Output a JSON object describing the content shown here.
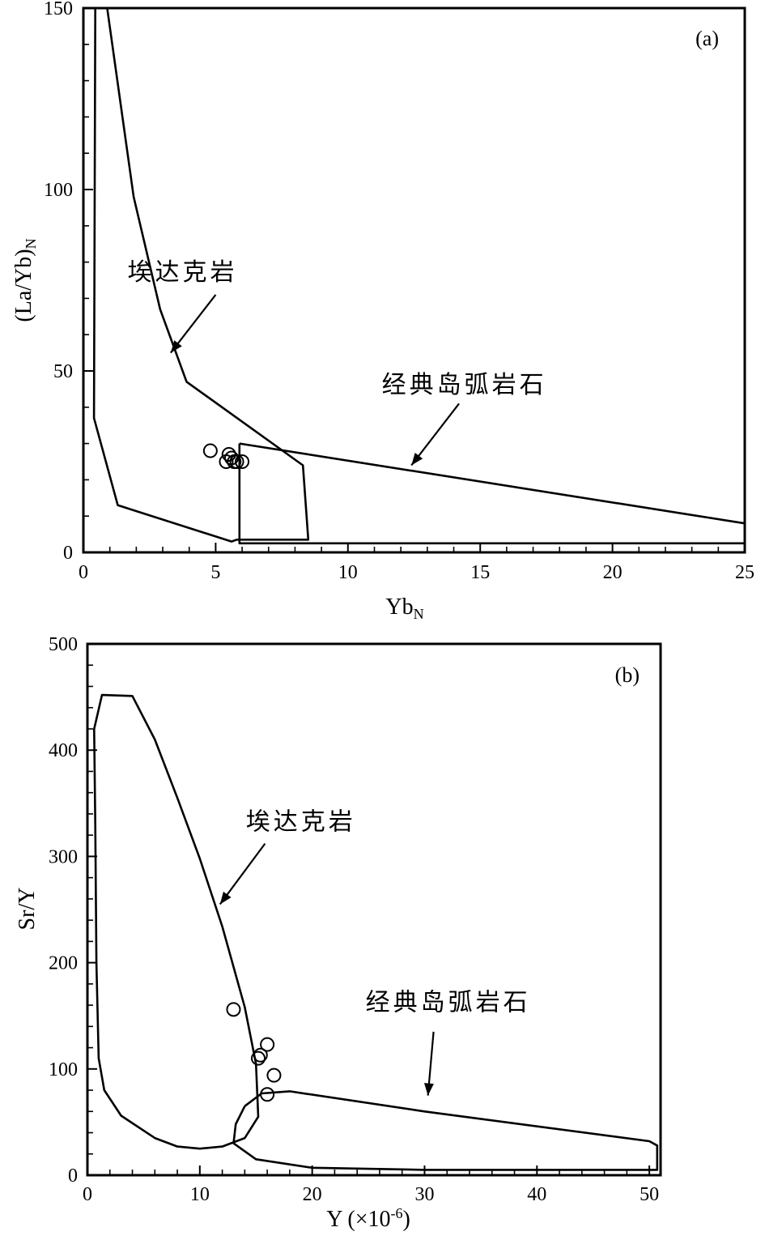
{
  "chart_data": [
    {
      "id": "a",
      "type": "scatter",
      "panel_label": "(a)",
      "xlabel": "Yb",
      "xlabel_sub": "N",
      "ylabel": "(La/Yb)",
      "ylabel_sub": "N",
      "xlim": [
        0,
        25
      ],
      "ylim": [
        0,
        150
      ],
      "xticks": [
        0,
        5,
        10,
        15,
        20,
        25
      ],
      "yticks": [
        0,
        50,
        100,
        150
      ],
      "grid": false,
      "points": [
        {
          "x": 4.8,
          "y": 28
        },
        {
          "x": 5.4,
          "y": 25
        },
        {
          "x": 5.5,
          "y": 27
        },
        {
          "x": 5.6,
          "y": 26
        },
        {
          "x": 5.7,
          "y": 25
        },
        {
          "x": 5.8,
          "y": 25
        },
        {
          "x": 6.0,
          "y": 25
        }
      ],
      "fields": [
        {
          "label": "埃达克岩",
          "points": [
            [
              0.9,
              150
            ],
            [
              1.9,
              98
            ],
            [
              2.9,
              67
            ],
            [
              3.9,
              47
            ],
            [
              8.3,
              24
            ],
            [
              8.5,
              3.5
            ],
            [
              5.8,
              3.5
            ],
            [
              5.6,
              3
            ],
            [
              1.3,
              13
            ],
            [
              0.4,
              37
            ],
            [
              0.45,
              150
            ]
          ]
        },
        {
          "label": "经典岛弧岩石",
          "points": [
            [
              5.9,
              30
            ],
            [
              25,
              8
            ],
            [
              25,
              2.5
            ],
            [
              5.9,
              2.5
            ],
            [
              5.9,
              30
            ]
          ]
        }
      ],
      "annotations": [
        {
          "text": "埃达克岩",
          "x": 3.75,
          "y": 75,
          "arrow_from": [
            5.0,
            71
          ],
          "arrow_to": [
            3.3,
            55
          ]
        },
        {
          "text": "经典岛弧岩石",
          "x": 14.4,
          "y": 44,
          "arrow_from": [
            14.2,
            41
          ],
          "arrow_to": [
            12.4,
            24
          ]
        }
      ]
    },
    {
      "id": "b",
      "type": "scatter",
      "panel_label": "(b)",
      "xlabel": "Y (×10",
      "xlabel_sup": "-6",
      "xlabel_end": ")",
      "ylabel": "Sr/Y",
      "xlim": [
        0,
        51
      ],
      "ylim": [
        0,
        500
      ],
      "xticks": [
        0,
        10,
        20,
        30,
        40,
        50
      ],
      "yticks": [
        0,
        100,
        200,
        300,
        400,
        500
      ],
      "grid": false,
      "points": [
        {
          "x": 13.0,
          "y": 156
        },
        {
          "x": 15.2,
          "y": 110
        },
        {
          "x": 15.4,
          "y": 113
        },
        {
          "x": 16.0,
          "y": 123
        },
        {
          "x": 16.6,
          "y": 94
        },
        {
          "x": 16.0,
          "y": 76
        }
      ],
      "fields": [
        {
          "label": "埃达克岩",
          "points": [
            [
              0.6,
              420
            ],
            [
              1.3,
              452
            ],
            [
              4.0,
              451
            ],
            [
              6.0,
              410
            ],
            [
              8.0,
              355
            ],
            [
              10.0,
              298
            ],
            [
              12.0,
              234
            ],
            [
              14.0,
              158
            ],
            [
              15.0,
              105
            ],
            [
              15.2,
              55
            ],
            [
              14.0,
              35
            ],
            [
              12.0,
              27
            ],
            [
              10.0,
              25
            ],
            [
              8.0,
              27
            ],
            [
              6.0,
              35
            ],
            [
              3.0,
              56
            ],
            [
              1.5,
              80
            ],
            [
              1.0,
              110
            ],
            [
              0.8,
              200
            ],
            [
              0.7,
              330
            ],
            [
              0.6,
              420
            ]
          ]
        },
        {
          "label": "经典岛弧岩石",
          "points": [
            [
              14.0,
              65
            ],
            [
              15.5,
              77
            ],
            [
              18.0,
              79
            ],
            [
              30.0,
              60
            ],
            [
              50.0,
              32
            ],
            [
              50.7,
              28
            ],
            [
              50.7,
              5
            ],
            [
              30.0,
              5
            ],
            [
              20.0,
              7
            ],
            [
              15.0,
              15
            ],
            [
              13.0,
              30
            ],
            [
              13.2,
              48
            ],
            [
              14.0,
              65
            ]
          ]
        }
      ],
      "annotations": [
        {
          "text": "埃达克岩",
          "x": 19.0,
          "y": 325,
          "arrow_from": [
            15.8,
            312
          ],
          "arrow_to": [
            11.8,
            255
          ]
        },
        {
          "text": "经典岛弧岩石",
          "x": 32.1,
          "y": 155,
          "arrow_from": [
            30.8,
            135
          ],
          "arrow_to": [
            30.3,
            75
          ]
        }
      ]
    }
  ]
}
